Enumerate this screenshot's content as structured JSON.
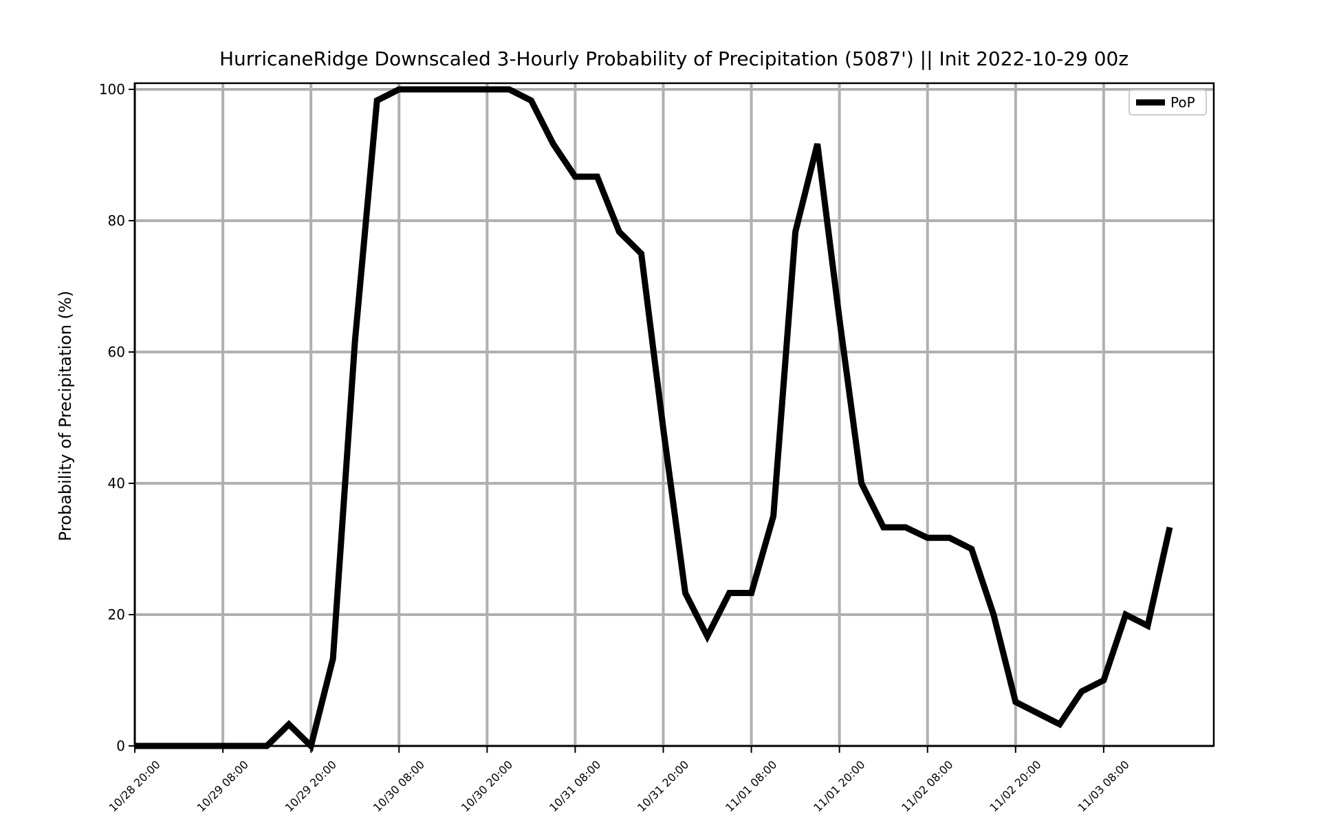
{
  "chart_data": {
    "type": "line",
    "title": "HurricaneRidge Downscaled 3-Hourly Probability of Precipitation (5087') || Init 2022-10-29 00z",
    "xlabel": "",
    "ylabel": "Probability of Precipitation (%)",
    "ylim": [
      0,
      100
    ],
    "xlim": [
      "2022-10-28 20:00",
      "2022-11-03 23:00"
    ],
    "yticks": [
      0,
      20,
      40,
      60,
      80,
      100
    ],
    "xticks": [
      "10/28 20:00",
      "10/29 08:00",
      "10/29 20:00",
      "10/30 08:00",
      "10/30 20:00",
      "10/31 08:00",
      "10/31 20:00",
      "11/01 08:00",
      "11/01 20:00",
      "11/02 08:00",
      "11/02 20:00",
      "11/03 08:00"
    ],
    "grid": true,
    "legend": "top-right",
    "colors": {
      "line": "#000000",
      "grid": "#b0b0b0"
    },
    "series": [
      {
        "name": "PoP",
        "x": [
          "2022-10-28 20:00",
          "2022-10-28 23:00",
          "2022-10-29 02:00",
          "2022-10-29 05:00",
          "2022-10-29 08:00",
          "2022-10-29 11:00",
          "2022-10-29 14:00",
          "2022-10-29 17:00",
          "2022-10-29 20:00",
          "2022-10-29 23:00",
          "2022-10-30 02:00",
          "2022-10-30 05:00",
          "2022-10-30 08:00",
          "2022-10-30 11:00",
          "2022-10-30 14:00",
          "2022-10-30 17:00",
          "2022-10-30 20:00",
          "2022-10-30 23:00",
          "2022-10-31 02:00",
          "2022-10-31 05:00",
          "2022-10-31 08:00",
          "2022-10-31 11:00",
          "2022-10-31 14:00",
          "2022-10-31 17:00",
          "2022-10-31 20:00",
          "2022-10-31 23:00",
          "2022-11-01 02:00",
          "2022-11-01 05:00",
          "2022-11-01 08:00",
          "2022-11-01 11:00",
          "2022-11-01 14:00",
          "2022-11-01 17:00",
          "2022-11-01 20:00",
          "2022-11-01 23:00",
          "2022-11-02 02:00",
          "2022-11-02 05:00",
          "2022-11-02 08:00",
          "2022-11-02 11:00",
          "2022-11-02 14:00",
          "2022-11-02 17:00",
          "2022-11-02 20:00",
          "2022-11-02 23:00",
          "2022-11-03 02:00",
          "2022-11-03 05:00",
          "2022-11-03 08:00",
          "2022-11-03 11:00",
          "2022-11-03 14:00",
          "2022-11-03 17:00"
        ],
        "values": [
          0,
          0,
          0,
          0,
          0,
          0,
          0,
          3.3,
          0,
          13.3,
          61.7,
          98.3,
          100,
          100,
          100,
          100,
          100,
          100,
          98.3,
          91.7,
          86.7,
          86.7,
          78.3,
          75,
          48.3,
          23.3,
          16.7,
          23.3,
          23.3,
          35,
          78.3,
          91.7,
          65,
          40,
          33.3,
          33.3,
          31.7,
          31.7,
          30,
          20,
          6.7,
          5,
          3.3,
          8.3,
          10,
          20,
          18.3,
          33.3
        ]
      }
    ]
  }
}
